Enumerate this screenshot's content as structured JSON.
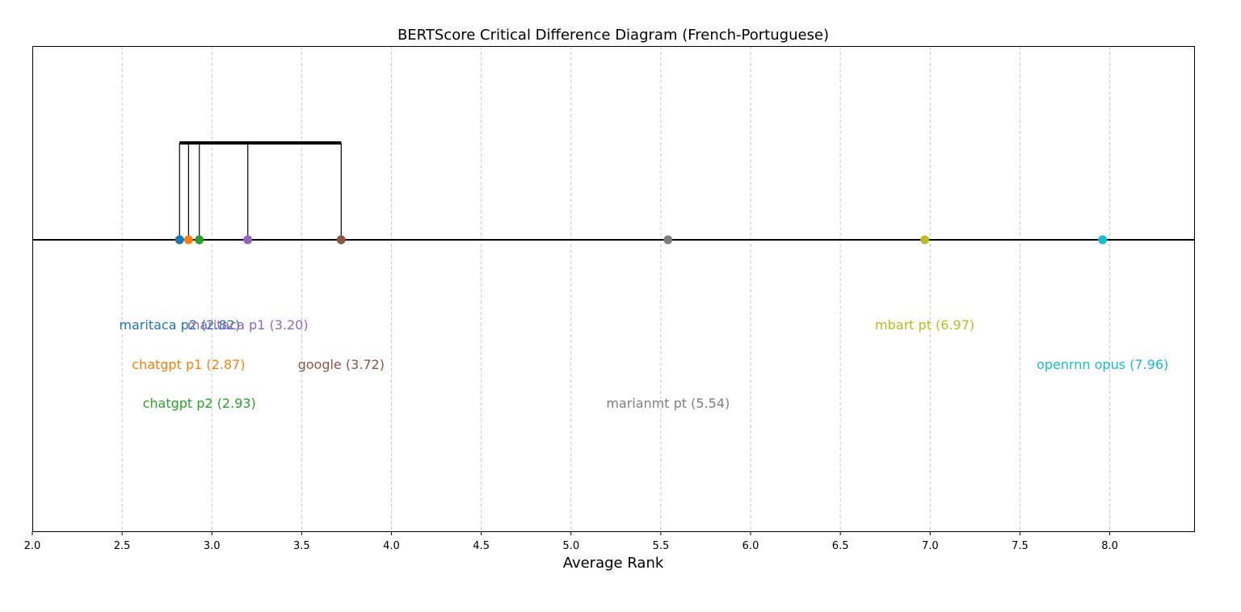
{
  "chart_data": {
    "type": "scatter",
    "title": "BERTScore Critical Difference Diagram (French-Portuguese)",
    "xlabel": "Average Rank",
    "ylabel": "",
    "xlim": [
      2.0,
      8.47
    ],
    "x_ticks": [
      "2.0",
      "2.5",
      "3.0",
      "3.5",
      "4.0",
      "4.5",
      "5.0",
      "5.5",
      "6.0",
      "6.5",
      "7.0",
      "7.5",
      "8.0"
    ],
    "grid": "vertical dashed",
    "series": [
      {
        "name": "maritaca p2",
        "x": 2.82,
        "label": "maritaca p2 (2.82)",
        "color": "#1f77b4",
        "label_row": 0
      },
      {
        "name": "chatgpt p1",
        "x": 2.87,
        "label": "chatgpt p1 (2.87)",
        "color": "#ff7f0e",
        "label_row": 1
      },
      {
        "name": "chatgpt p2",
        "x": 2.93,
        "label": "chatgpt p2 (2.93)",
        "color": "#2ca02c",
        "label_row": 2
      },
      {
        "name": "maritaca p1",
        "x": 3.2,
        "label": "maritaca p1 (3.20)",
        "color": "#9467bd",
        "label_row": 0
      },
      {
        "name": "google",
        "x": 3.72,
        "label": "google (3.72)",
        "color": "#8c564b",
        "label_row": 1
      },
      {
        "name": "marianmt pt",
        "x": 5.54,
        "label": "marianmt pt (5.54)",
        "color": "#7f7f7f",
        "label_row": 2
      },
      {
        "name": "mbart pt",
        "x": 6.97,
        "label": "mbart pt (6.97)",
        "color": "#bcbd22",
        "label_row": 0
      },
      {
        "name": "openrnn opus",
        "x": 7.96,
        "label": "openrnn opus (7.96)",
        "color": "#17becf",
        "label_row": 1
      }
    ],
    "cliques": [
      {
        "from": 2.82,
        "to": 3.72,
        "members": [
          2.82,
          2.87,
          2.93,
          3.2,
          3.72
        ]
      }
    ]
  }
}
